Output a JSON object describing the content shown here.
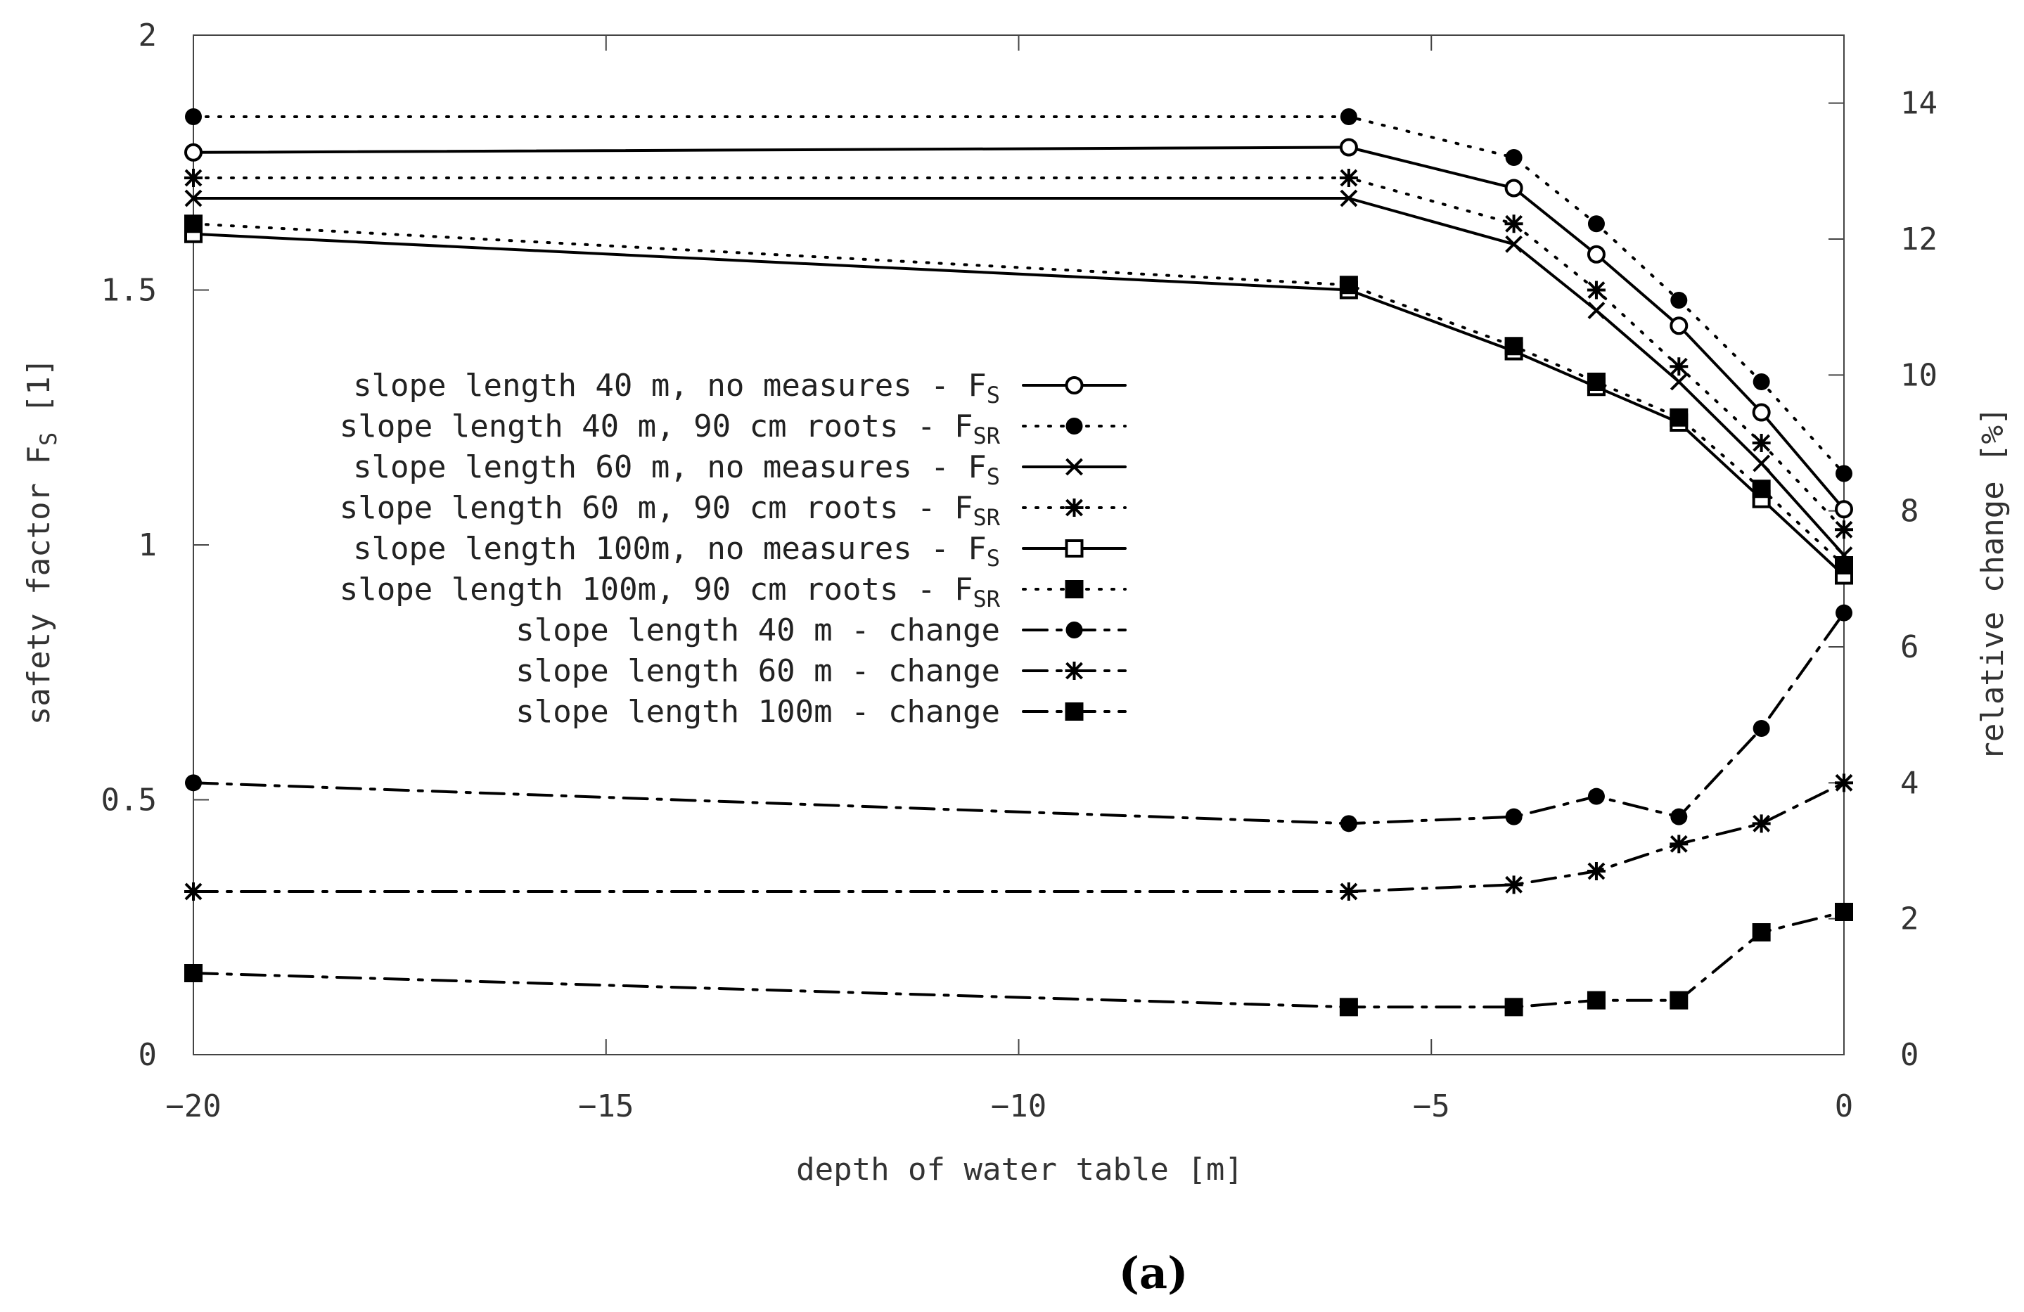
{
  "chart_data": {
    "type": "line",
    "caption": "(a)",
    "xlabel": "depth of water table [m]",
    "ylabel_left": "safety factor F",
    "ylabel_left_sub": "S",
    "ylabel_left_unit": " [1]",
    "ylabel_right": "relative change [%]",
    "xlim": [
      -20,
      0
    ],
    "ylim_left": [
      0,
      2
    ],
    "ylim_right": [
      0,
      15
    ],
    "x_ticks": [
      {
        "value": -20,
        "label": "−20"
      },
      {
        "value": -15,
        "label": "−15"
      },
      {
        "value": -10,
        "label": "−10"
      },
      {
        "value": -5,
        "label": "−5"
      },
      {
        "value": 0,
        "label": "0"
      }
    ],
    "y_left_ticks": [
      {
        "value": 0,
        "label": "0"
      },
      {
        "value": 0.5,
        "label": "0.5"
      },
      {
        "value": 1,
        "label": "1"
      },
      {
        "value": 1.5,
        "label": "1.5"
      },
      {
        "value": 2,
        "label": "2"
      }
    ],
    "y_right_ticks": [
      {
        "value": 0,
        "label": "0"
      },
      {
        "value": 2,
        "label": "2"
      },
      {
        "value": 4,
        "label": "4"
      },
      {
        "value": 6,
        "label": "6"
      },
      {
        "value": 8,
        "label": "8"
      },
      {
        "value": 10,
        "label": "10"
      },
      {
        "value": 12,
        "label": "12"
      },
      {
        "value": 14,
        "label": "14"
      }
    ],
    "series": [
      {
        "name": "slope length 40 m, no measures - F",
        "sub": "S",
        "axis": "left",
        "line": "solid",
        "marker": "open-circle",
        "x": [
          -20,
          -6,
          -4,
          -3,
          -2,
          -1,
          0
        ],
        "y": [
          1.77,
          1.78,
          1.7,
          1.57,
          1.43,
          1.26,
          1.07
        ]
      },
      {
        "name": "slope length 40 m, 90 cm roots - F",
        "sub": "SR",
        "axis": "left",
        "line": "dotted",
        "marker": "filled-circle",
        "x": [
          -20,
          -6,
          -4,
          -3,
          -2,
          -1,
          0
        ],
        "y": [
          1.84,
          1.84,
          1.76,
          1.63,
          1.48,
          1.32,
          1.14
        ]
      },
      {
        "name": "slope length 60 m, no measures - F",
        "sub": "S",
        "axis": "left",
        "line": "solid",
        "marker": "cross",
        "x": [
          -20,
          -6,
          -4,
          -3,
          -2,
          -1,
          0
        ],
        "y": [
          1.68,
          1.68,
          1.59,
          1.46,
          1.32,
          1.16,
          0.98
        ]
      },
      {
        "name": "slope length 60 m, 90 cm roots - F",
        "sub": "SR",
        "axis": "left",
        "line": "dotted",
        "marker": "asterisk",
        "x": [
          -20,
          -6,
          -4,
          -3,
          -2,
          -1,
          0
        ],
        "y": [
          1.72,
          1.72,
          1.63,
          1.5,
          1.35,
          1.2,
          1.03
        ]
      },
      {
        "name": "slope length 100m, no measures - F",
        "sub": "S",
        "axis": "left",
        "line": "solid",
        "marker": "open-square",
        "x": [
          -20,
          -6,
          -4,
          -3,
          -2,
          -1,
          0
        ],
        "y": [
          1.61,
          1.5,
          1.38,
          1.31,
          1.24,
          1.09,
          0.94
        ]
      },
      {
        "name": "slope length 100m, 90 cm roots - F",
        "sub": "SR",
        "axis": "left",
        "line": "dotted",
        "marker": "filled-square",
        "x": [
          -20,
          -6,
          -4,
          -3,
          -2,
          -1,
          0
        ],
        "y": [
          1.63,
          1.51,
          1.39,
          1.32,
          1.25,
          1.11,
          0.96
        ]
      },
      {
        "name": "slope length 40 m - change",
        "sub": "",
        "axis": "right",
        "line": "dashdot",
        "marker": "filled-circle",
        "x": [
          -20,
          -6,
          -4,
          -3,
          -2,
          -1,
          0
        ],
        "y": [
          4.0,
          3.4,
          3.5,
          3.8,
          3.5,
          4.8,
          6.5
        ]
      },
      {
        "name": "slope length 60 m - change",
        "sub": "",
        "axis": "right",
        "line": "dashdot",
        "marker": "asterisk",
        "x": [
          -20,
          -6,
          -4,
          -3,
          -2,
          -1,
          0
        ],
        "y": [
          2.4,
          2.4,
          2.5,
          2.7,
          3.1,
          3.4,
          4.0
        ]
      },
      {
        "name": "slope length 100m - change",
        "sub": "",
        "axis": "right",
        "line": "dashdot",
        "marker": "filled-square",
        "x": [
          -20,
          -6,
          -4,
          -3,
          -2,
          -1,
          0
        ],
        "y": [
          1.2,
          0.7,
          0.7,
          0.8,
          0.8,
          1.8,
          2.1
        ]
      }
    ]
  }
}
